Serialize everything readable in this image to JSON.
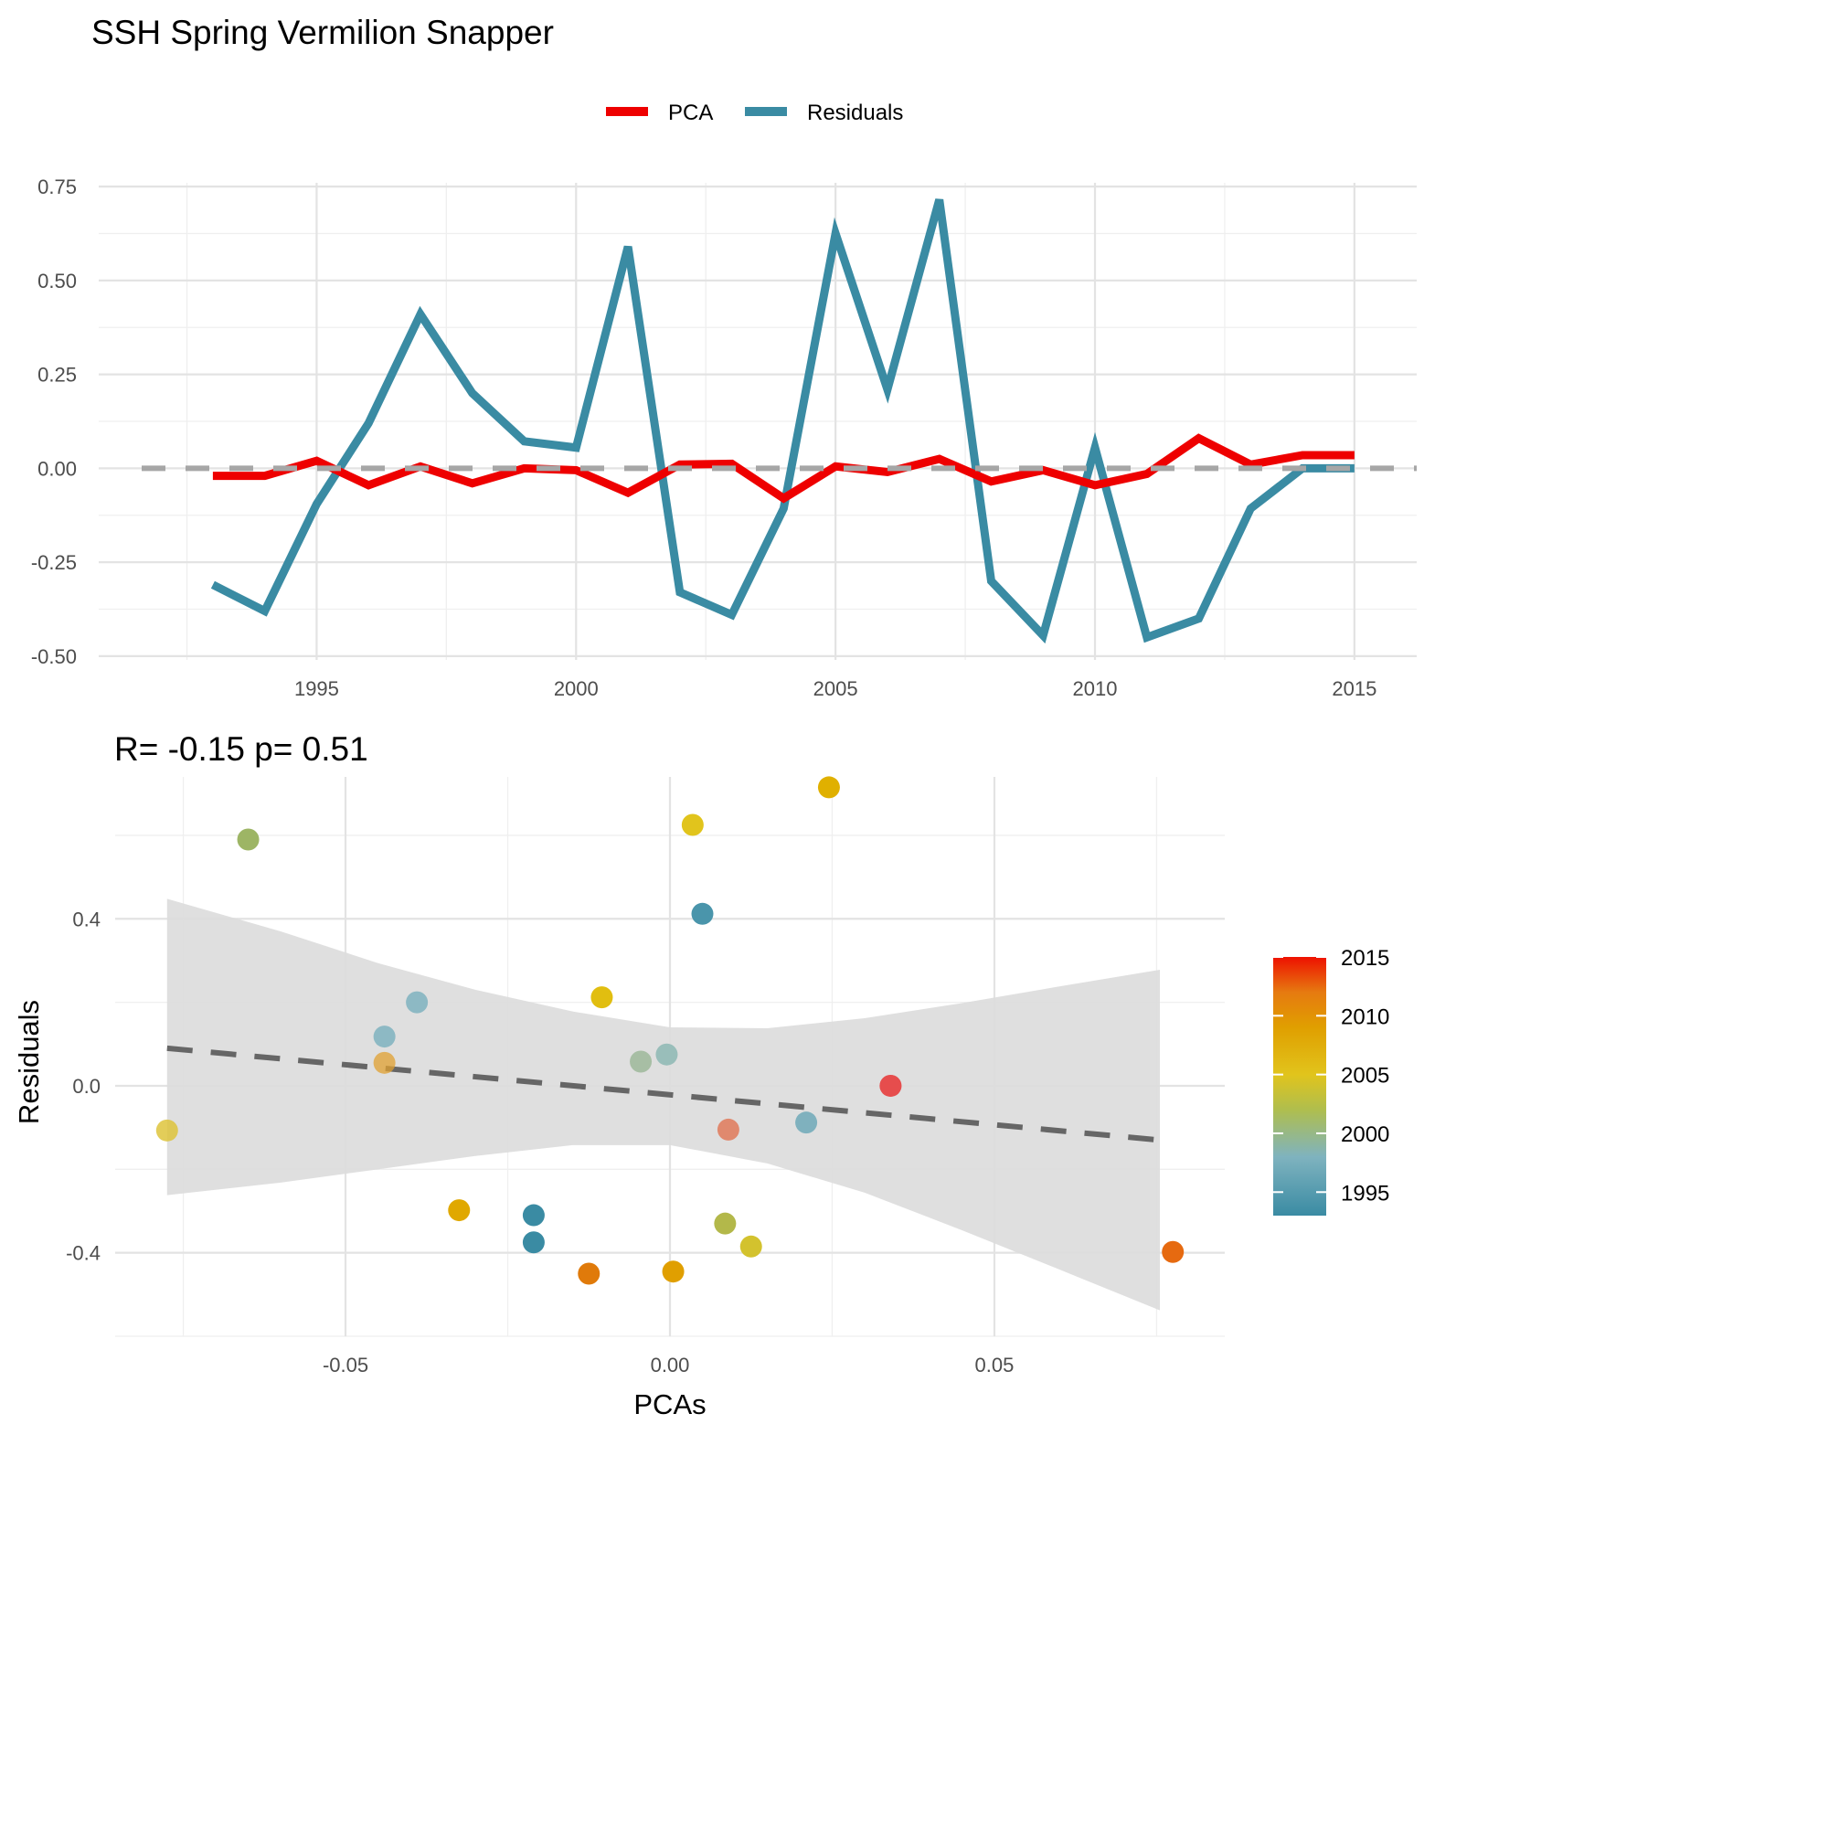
{
  "title": "SSH Spring Vermilion Snapper",
  "legend": {
    "items": [
      {
        "label": "PCA",
        "color": "#EE0000"
      },
      {
        "label": "Residuals",
        "color": "#3A8BA3"
      }
    ]
  },
  "colors": {
    "pca": "#EE0000",
    "residuals": "#3A8BA3",
    "zero_line": "#A6A6A6",
    "ribbon": "#DCDCDC",
    "fit_line": "#666666"
  },
  "chart_data": [
    {
      "type": "line",
      "x_ticks": [
        "1995",
        "2000",
        "2005",
        "2010",
        "2015"
      ],
      "y_ticks": [
        "0.75",
        "0.50",
        "0.25",
        "0.00",
        "-0.25",
        "-0.50"
      ],
      "xlim": [
        1990.8,
        2016.2
      ],
      "ylim": [
        -0.51,
        0.76
      ],
      "grid": true,
      "legend_position": "top",
      "reference_line": 0,
      "x": [
        1993,
        1994,
        1995,
        1996,
        1997,
        1998,
        1999,
        2000,
        2001,
        2002,
        2003,
        2004,
        2005,
        2006,
        2007,
        2008,
        2009,
        2010,
        2011,
        2012,
        2013,
        2014,
        2015
      ],
      "series": [
        {
          "name": "PCA",
          "values": [
            -0.02,
            -0.02,
            0.02,
            -0.045,
            0.005,
            -0.04,
            0.0,
            -0.005,
            -0.065,
            0.01,
            0.012,
            -0.08,
            0.005,
            -0.01,
            0.025,
            -0.035,
            -0.005,
            -0.045,
            -0.015,
            0.08,
            0.01,
            0.035,
            0.035
          ]
        },
        {
          "name": "Residuals",
          "values": [
            -0.31,
            -0.38,
            -0.095,
            0.12,
            0.41,
            0.2,
            0.072,
            0.055,
            0.59,
            -0.33,
            -0.39,
            -0.107,
            0.625,
            0.21,
            0.715,
            -0.3,
            -0.445,
            0.055,
            -0.45,
            -0.4,
            -0.107,
            0.0,
            0.0
          ]
        }
      ]
    },
    {
      "type": "scatter",
      "subtitle": "R= -0.15  p= 0.51",
      "xlabel": "PCAs",
      "ylabel": "Residuals",
      "x_ticks": [
        "-0.05",
        "0.00",
        "0.05"
      ],
      "y_ticks": [
        "0.4",
        "0.0",
        "-0.4"
      ],
      "xlim": [
        -0.0855,
        0.0855
      ],
      "ylim": [
        -0.6,
        0.74
      ],
      "grid": true,
      "colorbar": {
        "ticks": [
          "2015",
          "2010",
          "2005",
          "2000",
          "1995"
        ],
        "range": [
          1993,
          2015
        ],
        "stops": [
          {
            "year": 1993,
            "color": "#3A8BA3"
          },
          {
            "year": 1998,
            "color": "#7FB3BF"
          },
          {
            "year": 2002,
            "color": "#AFBE4E"
          },
          {
            "year": 2005,
            "color": "#E1C41C"
          },
          {
            "year": 2009,
            "color": "#E09F00"
          },
          {
            "year": 2012,
            "color": "#E67A10"
          },
          {
            "year": 2015,
            "color": "#EE1100"
          }
        ]
      },
      "points": [
        {
          "year": 1993,
          "x": -0.021,
          "y": -0.31,
          "color": "#3A8BA3"
        },
        {
          "year": 1994,
          "x": -0.021,
          "y": -0.375,
          "color": "#3A8BA3"
        },
        {
          "year": 1995,
          "x": 0.021,
          "y": -0.088,
          "color": "#6FA9B8",
          "alpha": 0.85
        },
        {
          "year": 1996,
          "x": -0.044,
          "y": 0.118,
          "color": "#7FB3BF",
          "alpha": 0.85
        },
        {
          "year": 1997,
          "x": 0.005,
          "y": 0.412,
          "color": "#4A95AB"
        },
        {
          "year": 1998,
          "x": -0.039,
          "y": 0.2,
          "color": "#7FB3BF",
          "alpha": 0.85
        },
        {
          "year": 1999,
          "x": -0.0005,
          "y": 0.075,
          "color": "#8DB8B4",
          "alpha": 0.85
        },
        {
          "year": 2000,
          "x": -0.0045,
          "y": 0.058,
          "color": "#9DB89A",
          "alpha": 0.85
        },
        {
          "year": 2001,
          "x": -0.065,
          "y": 0.59,
          "color": "#9DB565"
        },
        {
          "year": 2002,
          "x": 0.0085,
          "y": -0.33,
          "color": "#B3B84A"
        },
        {
          "year": 2003,
          "x": 0.0125,
          "y": -0.385,
          "color": "#D3C22E"
        },
        {
          "year": 2004,
          "x": -0.0775,
          "y": -0.107,
          "color": "#DEC43C",
          "alpha": 0.85
        },
        {
          "year": 2005,
          "x": 0.0035,
          "y": 0.625,
          "color": "#E1C41C"
        },
        {
          "year": 2006,
          "x": -0.0105,
          "y": 0.212,
          "color": "#E1BE10"
        },
        {
          "year": 2007,
          "x": 0.0245,
          "y": 0.715,
          "color": "#E0B000"
        },
        {
          "year": 2008,
          "x": -0.0325,
          "y": -0.298,
          "color": "#E0A800"
        },
        {
          "year": 2009,
          "x": 0.0005,
          "y": -0.445,
          "color": "#E09F00"
        },
        {
          "year": 2010,
          "x": -0.044,
          "y": 0.055,
          "color": "#E0A030",
          "alpha": 0.75
        },
        {
          "year": 2011,
          "x": -0.0125,
          "y": -0.45,
          "color": "#E07A0A"
        },
        {
          "year": 2012,
          "x": 0.0775,
          "y": -0.398,
          "color": "#E66A10"
        },
        {
          "year": 2013,
          "x": 0.009,
          "y": -0.105,
          "color": "#E07A5A",
          "alpha": 0.85
        },
        {
          "year": 2014,
          "x": 0.034,
          "y": 0.0,
          "color": "#E25555",
          "alpha": 0.9
        },
        {
          "year": 2015,
          "x": 0.034,
          "y": 0.0,
          "color": "#E84444",
          "alpha": 0.7
        }
      ],
      "fit": {
        "x": [
          -0.0775,
          0.0755
        ],
        "y": [
          0.09,
          -0.13
        ]
      },
      "ribbon": {
        "x": [
          -0.0775,
          -0.06,
          -0.045,
          -0.03,
          -0.015,
          0.0,
          0.015,
          0.03,
          0.045,
          0.06,
          0.0755
        ],
        "upper": [
          0.448,
          0.37,
          0.294,
          0.23,
          0.178,
          0.14,
          0.138,
          0.162,
          0.198,
          0.238,
          0.278
        ],
        "lower": [
          -0.262,
          -0.232,
          -0.2,
          -0.168,
          -0.142,
          -0.142,
          -0.186,
          -0.256,
          -0.346,
          -0.44,
          -0.538
        ]
      }
    }
  ]
}
